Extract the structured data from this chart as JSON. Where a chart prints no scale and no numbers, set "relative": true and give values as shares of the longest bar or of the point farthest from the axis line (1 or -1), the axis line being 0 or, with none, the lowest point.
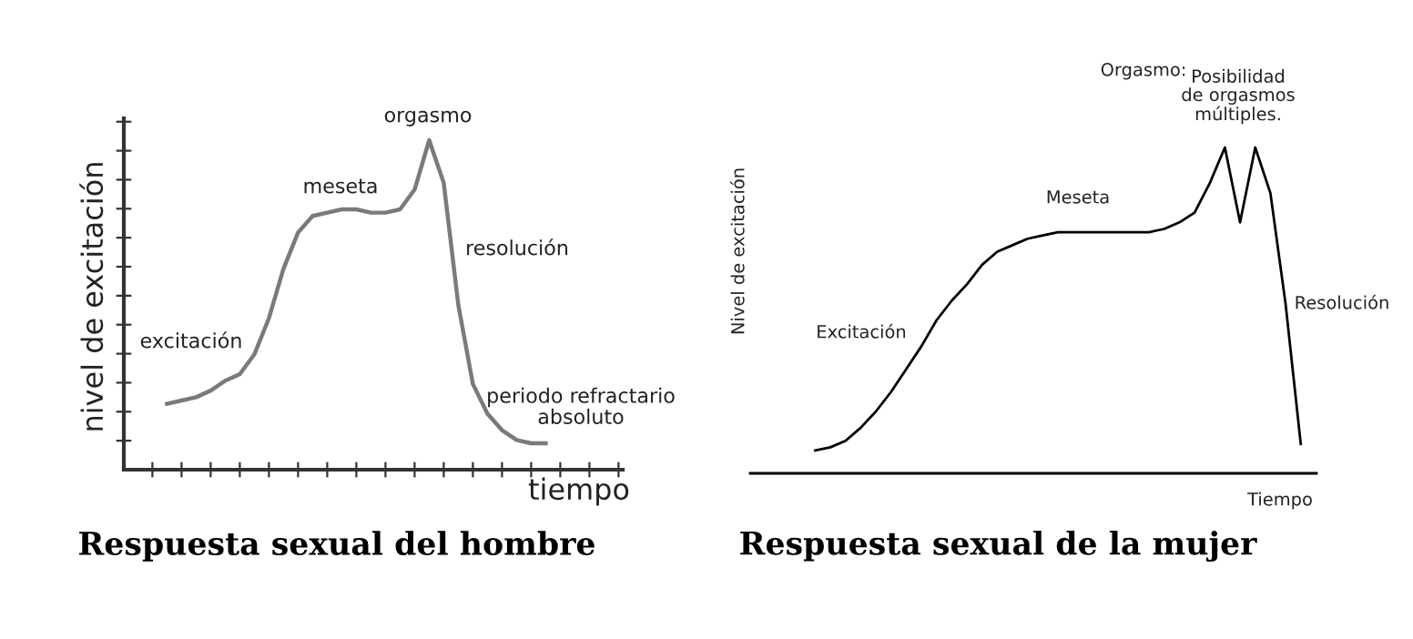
{
  "chart_data": [
    {
      "type": "line",
      "relative": true,
      "title": "Respuesta sexual del hombre",
      "xlabel": "tiempo",
      "ylabel": "nivel de excitación",
      "tick_labels": false,
      "categories": [
        null,
        null,
        null,
        null,
        null,
        null,
        null,
        null,
        null,
        null,
        null,
        null,
        null,
        null,
        null,
        null,
        null,
        null,
        null,
        null,
        null,
        null,
        null,
        null,
        null,
        null,
        null
      ],
      "series": [
        {
          "color": "#7a7a7a",
          "values": [
            0.2,
            0.21,
            0.22,
            0.24,
            0.27,
            0.29,
            0.35,
            0.46,
            0.61,
            0.72,
            0.77,
            0.78,
            0.79,
            0.79,
            0.78,
            0.78,
            0.79,
            0.85,
            1.0,
            0.87,
            0.5,
            0.26,
            0.17,
            0.12,
            0.09,
            0.08,
            0.08
          ]
        }
      ],
      "annotations": [
        "excitación",
        "meseta",
        "orgasmo",
        "resolución",
        "periodo refractario\nabsoluto"
      ]
    },
    {
      "type": "line",
      "relative": true,
      "title": "Respuesta sexual de la mujer",
      "xlabel": "Tiempo",
      "ylabel": "Nivel de excitación",
      "tick_labels": false,
      "categories": [
        null,
        null,
        null,
        null,
        null,
        null,
        null,
        null,
        null,
        null,
        null,
        null,
        null,
        null,
        null,
        null,
        null,
        null,
        null,
        null,
        null,
        null,
        null,
        null,
        null,
        null,
        null,
        null,
        null,
        null,
        null,
        null,
        null
      ],
      "series": [
        {
          "color": "#000000",
          "values": [
            0.07,
            0.08,
            0.1,
            0.14,
            0.19,
            0.25,
            0.32,
            0.39,
            0.47,
            0.53,
            0.58,
            0.64,
            0.68,
            0.7,
            0.72,
            0.73,
            0.74,
            0.74,
            0.74,
            0.74,
            0.74,
            0.74,
            0.74,
            0.75,
            0.77,
            0.8,
            0.89,
            1.0,
            0.77,
            1.0,
            0.86,
            0.52,
            0.09
          ]
        }
      ],
      "annotations": [
        "Orgasmo:",
        "Posibilidad\nde orgasmos\nmúltiples.",
        "Meseta",
        "Excitación",
        "Resolución"
      ]
    }
  ]
}
